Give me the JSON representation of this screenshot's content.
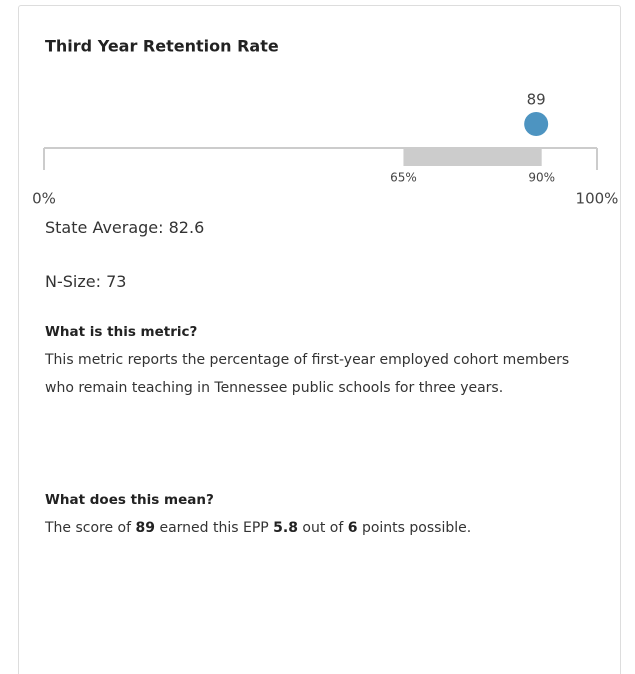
{
  "chart_data": {
    "type": "range-dot",
    "title": "Third Year Retention Rate",
    "value": 89,
    "color": "#4d94c1",
    "band_color": "#cccccc",
    "band_ticks": [
      {
        "value": 65,
        "label": "65%"
      },
      {
        "value": 90,
        "label": "90%"
      }
    ],
    "xlim": [
      0,
      100
    ],
    "xticks": [
      {
        "value": 0,
        "label": "0%"
      },
      {
        "value": 100,
        "label": "100%"
      }
    ]
  },
  "details": {
    "state_average": "State Average: 82.6",
    "n_size": "N-Size: 73",
    "metric_heading": "What is this metric?",
    "metric_text": "This metric reports the percentage of first-year employed cohort members who remain teaching in Tennessee public schools for three years.",
    "meaning_heading": "What does this mean?",
    "meaning_parts": [
      "The score of ",
      "89",
      " earned this EPP ",
      "5.8",
      " out of ",
      "6",
      " points possible."
    ]
  }
}
